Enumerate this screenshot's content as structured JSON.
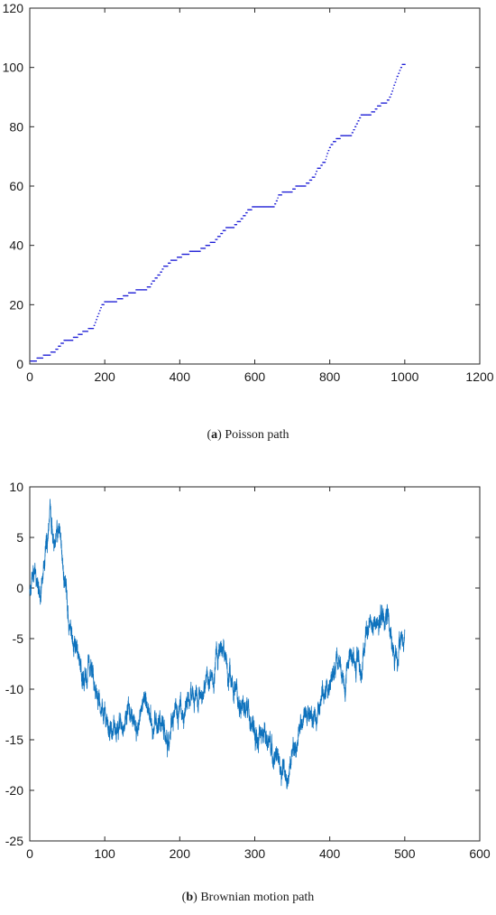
{
  "chart_data": [
    {
      "type": "scatter",
      "caption_tag": "a",
      "caption_text": "Poisson path",
      "xlim": [
        0,
        1200
      ],
      "ylim": [
        0,
        120
      ],
      "xticks": [
        0,
        200,
        400,
        600,
        800,
        1000,
        1200
      ],
      "yticks": [
        0,
        20,
        40,
        60,
        80,
        100,
        120
      ],
      "grid": false,
      "color": "#1f1fd6",
      "x_count": 1000,
      "jump_times": [
        18,
        35,
        55,
        68,
        75,
        82,
        90,
        115,
        128,
        140,
        155,
        170,
        173,
        176,
        179,
        182,
        185,
        188,
        191,
        198,
        232,
        248,
        262,
        282,
        312,
        322,
        326,
        333,
        340,
        347,
        352,
        356,
        368,
        375,
        392,
        405,
        425,
        455,
        468,
        480,
        494,
        500,
        508,
        514,
        522,
        545,
        552,
        562,
        568,
        575,
        580,
        592,
        652,
        656,
        660,
        662,
        672,
        700,
        708,
        736,
        745,
        752,
        760,
        763,
        766,
        775,
        780,
        788,
        790,
        792,
        795,
        798,
        802,
        808,
        816,
        828,
        858,
        862,
        866,
        870,
        874,
        878,
        882,
        910,
        920,
        926,
        936,
        952,
        958,
        962,
        965,
        968,
        970,
        973,
        976,
        978,
        982,
        985,
        988,
        992
      ]
    },
    {
      "type": "line",
      "caption_tag": "b",
      "caption_text": "Brownian motion path",
      "xlim": [
        0,
        600
      ],
      "ylim": [
        -25,
        10
      ],
      "xticks": [
        0,
        100,
        200,
        300,
        400,
        500,
        600
      ],
      "yticks": [
        -25,
        -20,
        -15,
        -10,
        -5,
        0,
        5,
        10
      ],
      "grid": false,
      "color": "#0e72bd",
      "x_range": [
        0,
        500
      ],
      "trend": {
        "x": [
          0,
          8,
          14,
          22,
          28,
          32,
          38,
          45,
          52,
          60,
          70,
          80,
          90,
          100,
          110,
          120,
          130,
          140,
          150,
          160,
          172,
          185,
          195,
          205,
          215,
          225,
          235,
          245,
          252,
          262,
          272,
          282,
          292,
          302,
          312,
          322,
          332,
          342,
          350,
          360,
          370,
          380,
          390,
          400,
          410,
          420,
          430,
          440,
          450,
          460,
          470,
          478,
          485,
          490,
          495,
          500
        ],
        "y": [
          -0.5,
          1.5,
          -1.0,
          4.5,
          7.5,
          4.0,
          5.5,
          2.0,
          -3.0,
          -6.0,
          -9.5,
          -7.5,
          -11.0,
          -12.5,
          -14.5,
          -13.0,
          -12.0,
          -13.5,
          -11.0,
          -12.5,
          -14.0,
          -15.5,
          -11.5,
          -12.5,
          -9.5,
          -11.5,
          -9.0,
          -8.5,
          -5.5,
          -7.5,
          -10.0,
          -11.5,
          -12.5,
          -15.0,
          -14.5,
          -16.0,
          -17.5,
          -19.0,
          -17.5,
          -14.5,
          -12.5,
          -13.5,
          -11.0,
          -9.5,
          -8.0,
          -9.0,
          -6.5,
          -7.5,
          -5.0,
          -3.5,
          -2.5,
          -3.0,
          -6.0,
          -7.5,
          -5.0,
          -4.5
        ]
      }
    }
  ]
}
